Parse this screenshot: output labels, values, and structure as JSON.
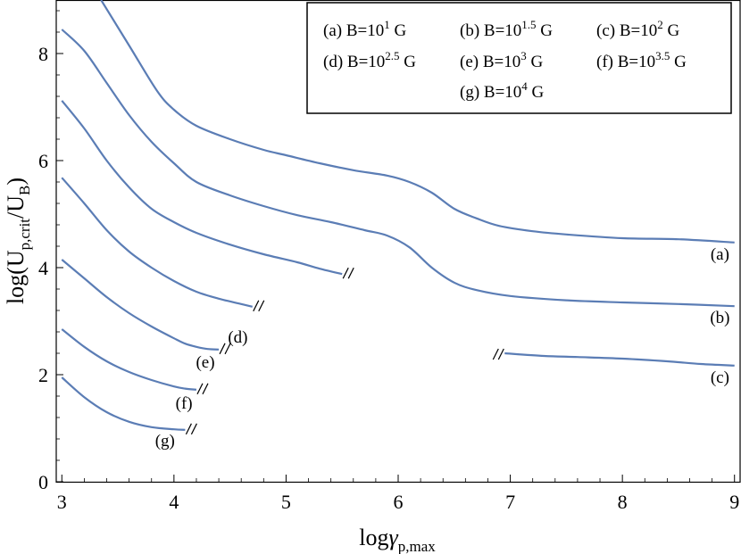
{
  "chart_data": {
    "type": "line",
    "xlabel": {
      "base": "log",
      "greek": "γ",
      "sub": "p,max"
    },
    "ylabel": {
      "pre": "log(U",
      "sub1": "p,crit",
      "mid": "/U",
      "sub2": "B",
      "post": ")"
    },
    "xlim": [
      2.95,
      9.05
    ],
    "ylim": [
      0,
      9
    ],
    "x_ticks": [
      3,
      4,
      5,
      6,
      7,
      8,
      9
    ],
    "y_ticks": [
      0,
      2,
      4,
      6,
      8
    ],
    "grid": false,
    "legend_position": "top-right",
    "line_color": "#5b7db5",
    "legend": [
      {
        "id": "a",
        "prefix": "(a) B=10",
        "exp": "1",
        "suffix": " G"
      },
      {
        "id": "b",
        "prefix": "(b) B=10",
        "exp": "1.5",
        "suffix": " G"
      },
      {
        "id": "c",
        "prefix": "(c) B=10",
        "exp": "2",
        "suffix": " G"
      },
      {
        "id": "d",
        "prefix": "(d) B=10",
        "exp": "2.5",
        "suffix": " G"
      },
      {
        "id": "e",
        "prefix": "(e) B=10",
        "exp": "3",
        "suffix": " G"
      },
      {
        "id": "f",
        "prefix": "(f) B=10",
        "exp": "3.5",
        "suffix": " G"
      },
      {
        "id": "g",
        "prefix": "(g) B=10",
        "exp": "4",
        "suffix": " G"
      }
    ],
    "series": [
      {
        "label": "(a)",
        "break": "",
        "x": [
          3.35,
          3.6,
          3.85,
          4.0,
          4.2,
          4.5,
          4.8,
          5.0,
          5.3,
          5.6,
          5.9,
          6.1,
          6.3,
          6.5,
          6.7,
          6.9,
          7.2,
          7.5,
          8.0,
          8.5,
          9.0
        ],
        "y": [
          9.0,
          8.15,
          7.3,
          6.95,
          6.65,
          6.4,
          6.2,
          6.1,
          5.95,
          5.82,
          5.72,
          5.6,
          5.4,
          5.1,
          4.92,
          4.78,
          4.68,
          4.62,
          4.55,
          4.53,
          4.47
        ]
      },
      {
        "label": "(b)",
        "break": "",
        "x": [
          3.0,
          3.2,
          3.4,
          3.6,
          3.8,
          4.0,
          4.2,
          4.5,
          4.8,
          5.1,
          5.4,
          5.7,
          5.9,
          6.1,
          6.3,
          6.5,
          6.7,
          7.0,
          7.5,
          8.0,
          8.5,
          9.0
        ],
        "y": [
          8.45,
          8.05,
          7.45,
          6.85,
          6.35,
          5.95,
          5.6,
          5.35,
          5.15,
          4.98,
          4.85,
          4.7,
          4.6,
          4.38,
          4.0,
          3.72,
          3.58,
          3.47,
          3.39,
          3.35,
          3.32,
          3.28
        ]
      },
      {
        "label": "(c)",
        "break": "start",
        "x": [
          3.0,
          3.2,
          3.4,
          3.6,
          3.8,
          4.0,
          4.2,
          4.5,
          4.8,
          5.1,
          5.3,
          5.5
        ],
        "y": [
          7.12,
          6.6,
          6.0,
          5.5,
          5.1,
          4.85,
          4.65,
          4.43,
          4.25,
          4.1,
          3.98,
          3.88
        ],
        "x2": [
          6.95,
          7.3,
          7.6,
          8.0,
          8.4,
          8.7,
          9.0
        ],
        "y2": [
          2.4,
          2.35,
          2.33,
          2.3,
          2.25,
          2.2,
          2.17
        ]
      },
      {
        "label": "(d)",
        "break": "end",
        "x": [
          3.0,
          3.2,
          3.4,
          3.6,
          3.8,
          4.0,
          4.2,
          4.4,
          4.6,
          4.7
        ],
        "y": [
          5.68,
          5.2,
          4.7,
          4.3,
          4.0,
          3.75,
          3.55,
          3.42,
          3.32,
          3.27
        ]
      },
      {
        "label": "(e)",
        "break": "end",
        "x": [
          3.0,
          3.2,
          3.4,
          3.6,
          3.8,
          4.0,
          4.1,
          4.2,
          4.3,
          4.4
        ],
        "y": [
          4.15,
          3.8,
          3.45,
          3.15,
          2.9,
          2.68,
          2.58,
          2.52,
          2.48,
          2.47
        ]
      },
      {
        "label": "(f)",
        "break": "end",
        "x": [
          3.0,
          3.2,
          3.4,
          3.6,
          3.8,
          4.0,
          4.1,
          4.2
        ],
        "y": [
          2.85,
          2.52,
          2.25,
          2.05,
          1.9,
          1.78,
          1.74,
          1.72
        ]
      },
      {
        "label": "(g)",
        "break": "end",
        "x": [
          3.0,
          3.2,
          3.4,
          3.6,
          3.8,
          4.0,
          4.1
        ],
        "y": [
          1.95,
          1.58,
          1.3,
          1.12,
          1.02,
          0.98,
          0.97
        ]
      }
    ],
    "curve_labels": [
      {
        "text": "(a)",
        "x": 8.87,
        "y": 4.15
      },
      {
        "text": "(b)",
        "x": 8.87,
        "y": 2.97
      },
      {
        "text": "(c)",
        "x": 8.87,
        "y": 1.85
      },
      {
        "text": "(d)",
        "x": 4.57,
        "y": 2.6
      },
      {
        "text": "(e)",
        "x": 4.28,
        "y": 2.13
      },
      {
        "text": "(f)",
        "x": 4.09,
        "y": 1.37
      },
      {
        "text": "(g)",
        "x": 3.92,
        "y": 0.67
      }
    ]
  }
}
